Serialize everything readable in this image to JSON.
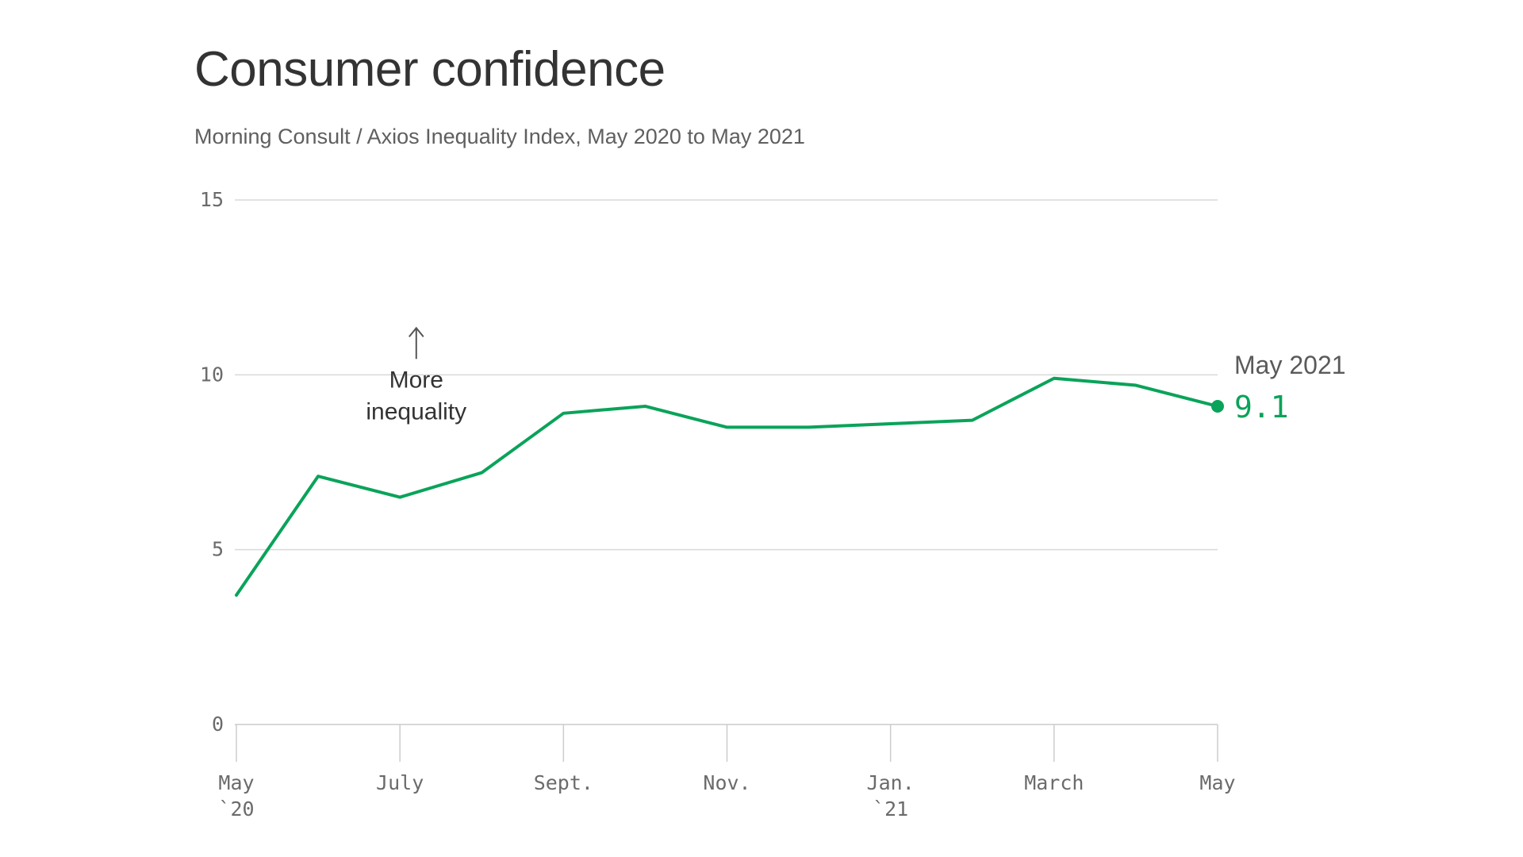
{
  "title": "Consumer confidence",
  "subtitle": "Morning Consult / Axios Inequality Index, May 2020 to May 2021",
  "chart_data": {
    "type": "line",
    "x": [
      "May 2020",
      "June 2020",
      "July 2020",
      "Aug. 2020",
      "Sept. 2020",
      "Oct. 2020",
      "Nov. 2020",
      "Dec. 2020",
      "Jan. 2021",
      "Feb. 2021",
      "March 2021",
      "April 2021",
      "May 2021"
    ],
    "series": [
      {
        "values": [
          3.7,
          7.1,
          6.5,
          7.2,
          8.9,
          9.1,
          8.5,
          8.5,
          8.6,
          8.7,
          9.9,
          9.7,
          9.1
        ],
        "color": "#0aa35a"
      }
    ],
    "ylim": [
      0,
      15
    ],
    "yticks": [
      "0",
      "5",
      "10",
      "15"
    ],
    "xticks": [
      {
        "index": 0,
        "label": "May",
        "sublabel": "`20"
      },
      {
        "index": 2,
        "label": "July",
        "sublabel": ""
      },
      {
        "index": 4,
        "label": "Sept.",
        "sublabel": ""
      },
      {
        "index": 6,
        "label": "Nov.",
        "sublabel": ""
      },
      {
        "index": 8,
        "label": "Jan.",
        "sublabel": "`21"
      },
      {
        "index": 10,
        "label": "March",
        "sublabel": ""
      },
      {
        "index": 12,
        "label": "May",
        "sublabel": ""
      }
    ],
    "annotation": {
      "line1": "More",
      "line2": "inequality",
      "arrow": "up-arrow-icon",
      "x_index": 2.2,
      "y": 10.0
    },
    "end_label": {
      "label": "May 2021",
      "value": "9.1"
    },
    "grid": true,
    "grid_color": "#d9d9d9",
    "axis_color": "#cccccc"
  }
}
